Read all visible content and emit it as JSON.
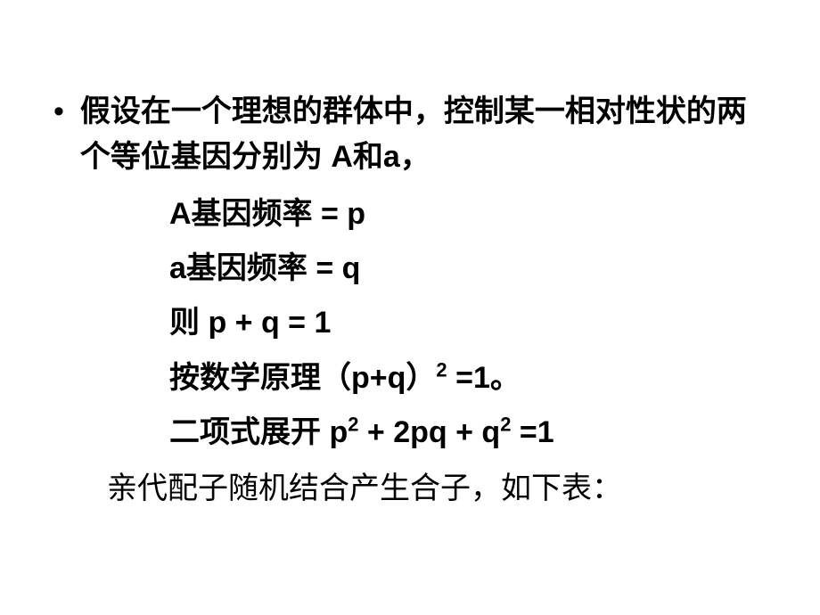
{
  "slide": {
    "bullet": "•",
    "intro": "假设在一个理想的群体中，控制某一相对性状的两个等位基因分别为 A和a，",
    "eq1": "A基因频率 = p",
    "eq2": "a基因频率 = q",
    "eq3": "则   p + q = 1",
    "eq4_prefix": "按数学原理（p+q）",
    "eq4_suffix": " =1。",
    "eq5_prefix": "二项式展开 p",
    "eq5_mid1": " + 2pq + q",
    "eq5_suffix": " =1",
    "sup": "2",
    "final": "亲代配子随机结合产生合子，如下表：",
    "style": {
      "background": "#ffffff",
      "text_color": "#000000",
      "font_main": "SimHei",
      "font_final": "SimSun",
      "font_size_main": 34,
      "font_size_sup": 22,
      "line_height_eq": 1.8,
      "line_height_intro": 1.5,
      "slide_width": 920,
      "slide_height": 690,
      "bold_main": true,
      "bold_final": false
    }
  }
}
